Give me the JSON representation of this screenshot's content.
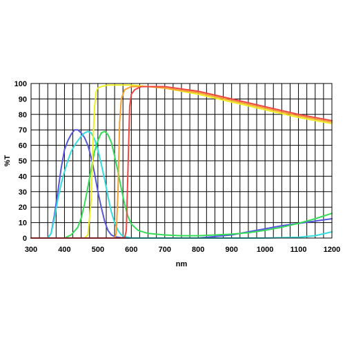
{
  "chart_data": {
    "type": "line",
    "title": "",
    "xlabel": "nm",
    "ylabel": "%T",
    "xlim": [
      300,
      1200
    ],
    "ylim": [
      0,
      100
    ],
    "x_ticks": [
      300,
      400,
      500,
      600,
      700,
      800,
      900,
      1000,
      1100,
      1200
    ],
    "x_tick_labels": [
      "300",
      "400",
      "500",
      "600",
      "700",
      "800",
      "900",
      "1000",
      "1100",
      "1200"
    ],
    "y_ticks": [
      0,
      10,
      20,
      30,
      40,
      50,
      60,
      70,
      80,
      90,
      100
    ],
    "y_tick_labels": [
      "0",
      "10",
      "20",
      "30",
      "40",
      "50",
      "60",
      "70",
      "80",
      "90",
      "100"
    ],
    "grid": true,
    "legend": "none",
    "series": [
      {
        "color": "#5555dd",
        "x": [
          300,
          350,
          360,
          370,
          380,
          390,
          400,
          410,
          420,
          430,
          440,
          450,
          460,
          470,
          480,
          490,
          500,
          510,
          520,
          530,
          540,
          550,
          560,
          580,
          600,
          700,
          800,
          850,
          900,
          950,
          1000,
          1050,
          1100,
          1150,
          1200
        ],
        "y": [
          0,
          0,
          3,
          15,
          30,
          45,
          57,
          63,
          67,
          70,
          70,
          68,
          65,
          60,
          52,
          42,
          30,
          20,
          11,
          5,
          2,
          1,
          0.5,
          0,
          0,
          0,
          0,
          1,
          2,
          4,
          6,
          8,
          9.5,
          11,
          12.5
        ]
      },
      {
        "color": "#33dddd",
        "x": [
          300,
          350,
          360,
          370,
          380,
          390,
          400,
          410,
          420,
          430,
          440,
          450,
          460,
          470,
          480,
          490,
          500,
          510,
          520,
          530,
          540,
          550,
          560,
          570,
          580,
          600,
          700,
          800,
          900,
          1000,
          1100,
          1150,
          1200
        ],
        "y": [
          0,
          0,
          3,
          13,
          25,
          35,
          43,
          50,
          56,
          60,
          63,
          66,
          68,
          69,
          68,
          64,
          57,
          48,
          38,
          27,
          17,
          10,
          5,
          2,
          1,
          0,
          0,
          0,
          0,
          0,
          0.5,
          1.5,
          4
        ]
      },
      {
        "color": "#33dd55",
        "x": [
          300,
          400,
          420,
          440,
          450,
          460,
          470,
          480,
          490,
          500,
          510,
          520,
          530,
          540,
          550,
          560,
          570,
          580,
          590,
          600,
          620,
          650,
          700,
          750,
          800,
          850,
          900,
          950,
          1000,
          1050,
          1100,
          1150,
          1200
        ],
        "y": [
          0,
          0,
          2,
          7,
          13,
          22,
          33,
          45,
          56,
          63,
          68,
          69,
          67,
          62,
          53,
          43,
          32,
          22,
          14,
          9,
          5,
          3,
          2,
          1.5,
          1.5,
          2,
          2.5,
          3.5,
          5,
          7,
          9.5,
          12.5,
          16
        ]
      },
      {
        "color": "#eeee22",
        "x": [
          300,
          460,
          470,
          480,
          485,
          490,
          495,
          500,
          510,
          530,
          560,
          600,
          650,
          700,
          800,
          900,
          1000,
          1100,
          1200
        ],
        "y": [
          0,
          0,
          2,
          25,
          60,
          85,
          95,
          97,
          98,
          99,
          99,
          99,
          98,
          97,
          93,
          88,
          83,
          78,
          74
        ]
      },
      {
        "color": "#f5a030",
        "x": [
          300,
          550,
          555,
          560,
          565,
          570,
          580,
          600,
          650,
          700,
          800,
          900,
          1000,
          1100,
          1200
        ],
        "y": [
          0,
          0,
          3,
          30,
          75,
          90,
          96,
          98,
          98,
          97,
          94,
          89,
          84,
          79,
          75
        ]
      },
      {
        "color": "#ee4444",
        "x": [
          300,
          580,
          585,
          590,
          595,
          600,
          610,
          630,
          650,
          700,
          800,
          900,
          1000,
          1100,
          1200
        ],
        "y": [
          0,
          0,
          5,
          45,
          85,
          93,
          96,
          98,
          98,
          98,
          95,
          90,
          85,
          80,
          76
        ]
      }
    ]
  }
}
